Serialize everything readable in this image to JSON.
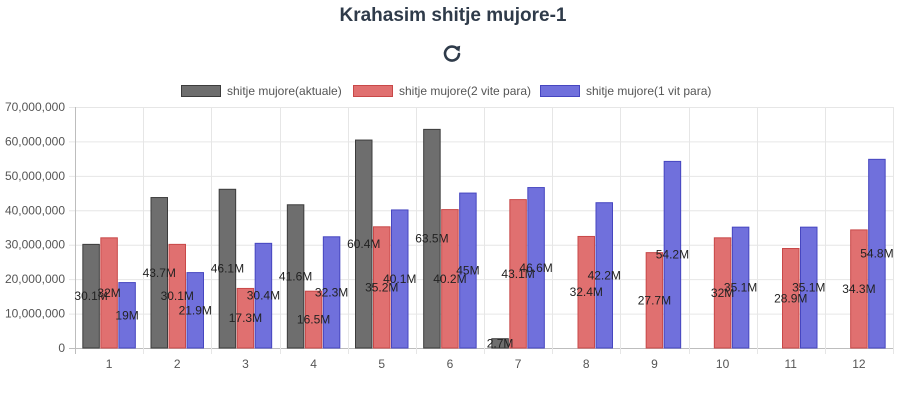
{
  "header": {
    "title": "Krahasim shitje mujore-1",
    "refresh_icon": "refresh-icon"
  },
  "chart_data": {
    "type": "bar",
    "title": "Krahasim shitje mujore-1",
    "categories": [
      "1",
      "2",
      "3",
      "4",
      "5",
      "6",
      "7",
      "8",
      "9",
      "10",
      "11",
      "12"
    ],
    "ylim": [
      0,
      70000000
    ],
    "yticks": [
      0,
      10000000,
      20000000,
      30000000,
      40000000,
      50000000,
      60000000,
      70000000
    ],
    "ytick_labels": [
      "0",
      "10,000,000",
      "20,000,000",
      "30,000,000",
      "40,000,000",
      "50,000,000",
      "60,000,000",
      "70,000,000"
    ],
    "grid": true,
    "legend_position": "top",
    "series": [
      {
        "name": "shitje mujore(aktuale)",
        "color": "#6e6e6e",
        "border": "#3c3c3c",
        "values": [
          30100000,
          43700000,
          46100000,
          41600000,
          60400000,
          63500000,
          2700000,
          null,
          null,
          null,
          null,
          null
        ],
        "labels": [
          "30.1M",
          "43.7M",
          "46.1M",
          "41.6M",
          "60.4M",
          "63.5M",
          "2.7M",
          "",
          "",
          "",
          "",
          ""
        ]
      },
      {
        "name": "shitje mujore(2 vite para)",
        "color": "#e07070",
        "border": "#c84848",
        "values": [
          32000000,
          30100000,
          17300000,
          16500000,
          35200000,
          40200000,
          43100000,
          32400000,
          27700000,
          32000000,
          28900000,
          34300000
        ],
        "labels": [
          "32M",
          "30.1M",
          "17.3M",
          "16.5M",
          "35.2M",
          "40.2M",
          "43.1M",
          "32.4M",
          "27.7M",
          "32M",
          "28.9M",
          "34.3M"
        ]
      },
      {
        "name": "shitje mujore(1 vit para)",
        "color": "#7070dc",
        "border": "#4646c0",
        "values": [
          19000000,
          21900000,
          30400000,
          32300000,
          40100000,
          45000000,
          46600000,
          42200000,
          54200000,
          35100000,
          35100000,
          54800000
        ],
        "labels": [
          "19M",
          "21.9M",
          "30.4M",
          "32.3M",
          "40.1M",
          "45M",
          "46.6M",
          "42.2M",
          "54.2M",
          "35.1M",
          "35.1M",
          "54.8M"
        ]
      }
    ]
  }
}
